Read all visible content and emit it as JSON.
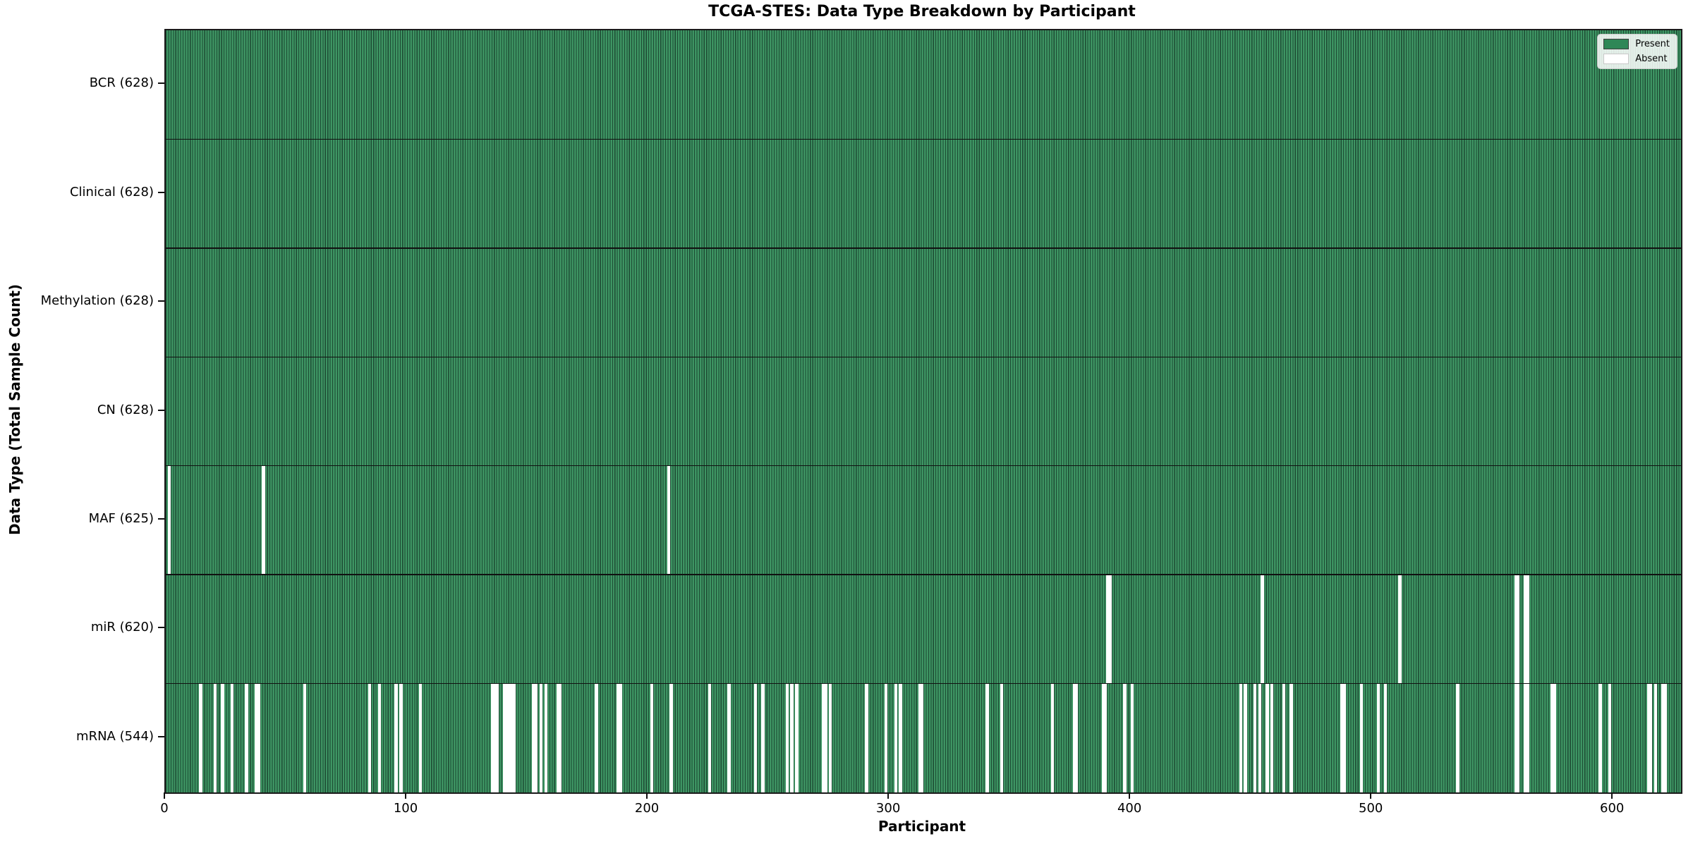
{
  "title": "TCGA-STES: Data Type Breakdown by Participant",
  "xlabel": "Participant",
  "ylabel": "Data Type (Total Sample Count)",
  "legend": {
    "present_label": "Present",
    "absent_label": "Absent"
  },
  "colors": {
    "present_fill": "#38905f",
    "present_fill_light": "#429866",
    "bar_edge": "#1d4a33",
    "absent_fill": "#ffffff",
    "row_divider": "#111111",
    "axis": "#111111"
  },
  "chart_data": {
    "type": "heatmap",
    "title": "TCGA-STES: Data Type Breakdown by Participant",
    "xlabel": "Participant",
    "ylabel": "Data Type (Total Sample Count)",
    "legend_entries": [
      "Present",
      "Absent"
    ],
    "legend_position": "upper right",
    "n_participants": 628,
    "x_range": [
      0,
      628
    ],
    "x_ticks": [
      0,
      100,
      200,
      300,
      400,
      500,
      600
    ],
    "rows": [
      {
        "label": "BCR (628)",
        "data_type": "BCR",
        "present_count": 628,
        "absent_count": 0,
        "absent_participants": []
      },
      {
        "label": "Clinical (628)",
        "data_type": "Clinical",
        "present_count": 628,
        "absent_count": 0,
        "absent_participants": []
      },
      {
        "label": "Methylation (628)",
        "data_type": "Methylation",
        "present_count": 628,
        "absent_count": 0,
        "absent_participants": []
      },
      {
        "label": "CN (628)",
        "data_type": "CN",
        "present_count": 628,
        "absent_count": 0,
        "absent_participants": []
      },
      {
        "label": "MAF (625)",
        "data_type": "MAF",
        "present_count": 625,
        "absent_count": 3,
        "absent_participants": [
          1,
          40,
          208
        ]
      },
      {
        "label": "miR (620)",
        "data_type": "miR",
        "present_count": 620,
        "absent_count": 8,
        "absent_participants": [
          390,
          391,
          454,
          511,
          559,
          560,
          563,
          564
        ]
      },
      {
        "label": "mRNA (544)",
        "data_type": "mRNA",
        "present_count": 544,
        "absent_count": 84,
        "absent_participants": [
          14,
          20,
          23,
          27,
          33,
          37,
          38,
          57,
          84,
          88,
          95,
          97,
          105,
          135,
          136,
          137,
          140,
          141,
          142,
          143,
          144,
          152,
          153,
          155,
          157,
          162,
          163,
          178,
          187,
          188,
          201,
          209,
          225,
          233,
          244,
          247,
          257,
          259,
          261,
          272,
          273,
          275,
          290,
          298,
          302,
          304,
          312,
          313,
          340,
          346,
          367,
          376,
          377,
          388,
          389,
          397,
          400,
          445,
          447,
          451,
          453,
          456,
          458,
          463,
          466,
          487,
          488,
          495,
          502,
          505,
          535,
          559,
          560,
          563,
          564,
          574,
          575,
          594,
          598,
          614,
          615,
          617,
          620,
          621
        ]
      }
    ]
  }
}
